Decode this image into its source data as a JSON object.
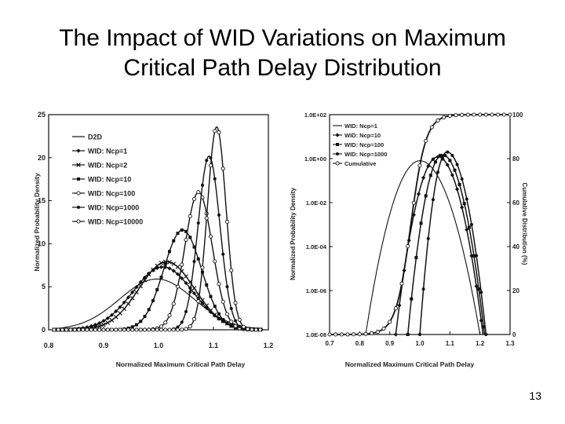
{
  "slide": {
    "title_line1": "The Impact of WID Variations on Maximum",
    "title_line2": "Critical Path Delay Distribution",
    "page_number": "13"
  },
  "colors": {
    "ink": "#111111",
    "background": "#ffffff"
  },
  "chart_data": [
    {
      "type": "line",
      "xlabel": "Normalized Maximum Critical Path Delay",
      "ylabel": "Normalized Probability Density",
      "xlim": [
        0.8,
        1.2
      ],
      "ylim": [
        0,
        25
      ],
      "xticks": [
        "0.8",
        "0.9",
        "1.0",
        "1.1",
        "1.2"
      ],
      "yticks": [
        "0",
        "5",
        "10",
        "15",
        "20",
        "25"
      ],
      "legend_position": "top-left",
      "series": [
        {
          "name": "D2D",
          "mean": 0.997,
          "peak": 5.9
        },
        {
          "name": "WID: Ncp=1",
          "mean": 1.008,
          "peak": 7.3
        },
        {
          "name": "WID: Ncp=2",
          "mean": 1.015,
          "peak": 7.9
        },
        {
          "name": "WID: Ncp=10",
          "mean": 1.044,
          "peak": 11.6
        },
        {
          "name": "WID: Ncp=100",
          "mean": 1.073,
          "peak": 16.0
        },
        {
          "name": "WID: Ncp=1000",
          "mean": 1.092,
          "peak": 20.2
        },
        {
          "name": "WID: Ncp=10000",
          "mean": 1.106,
          "peak": 23.6
        }
      ]
    },
    {
      "type": "line",
      "xlabel": "Normalized Maximum Critical Path Delay",
      "ylabel": "Normalized Probability Density",
      "y2label": "Cumulative Distribution (%)",
      "xlim": [
        0.7,
        1.3
      ],
      "ylim_log": [
        1e-08,
        100
      ],
      "y2lim": [
        0,
        100
      ],
      "xticks": [
        "0.7",
        "0.8",
        "0.9",
        "1.0",
        "1.1",
        "1.2",
        "1.3"
      ],
      "yticks": [
        "1.0E-08",
        "1.0E-06",
        "1.0E-04",
        "1.0E-02",
        "1.0E+00",
        "1.0E+02"
      ],
      "y2ticks": [
        "0",
        "20",
        "40",
        "60",
        "80",
        "100"
      ],
      "legend_position": "top-left",
      "series": [
        {
          "name": "WID: Ncp=1",
          "peak_x": 1.0,
          "peak_y": 0.8,
          "start_x": 0.82,
          "end_x": 1.2
        },
        {
          "name": "WID: Ncp=10",
          "peak_x": 1.06,
          "peak_y": 1.2,
          "start_x": 0.92,
          "end_x": 1.21
        },
        {
          "name": "WID: Ncp=100",
          "peak_x": 1.075,
          "peak_y": 1.5,
          "start_x": 0.96,
          "end_x": 1.215
        },
        {
          "name": "WID: Ncp=1000",
          "peak_x": 1.09,
          "peak_y": 2.0,
          "start_x": 1.0,
          "end_x": 1.22
        },
        {
          "name": "Cumulative",
          "type": "sigmoid",
          "center_x": 0.97,
          "width": 0.025
        }
      ]
    }
  ]
}
